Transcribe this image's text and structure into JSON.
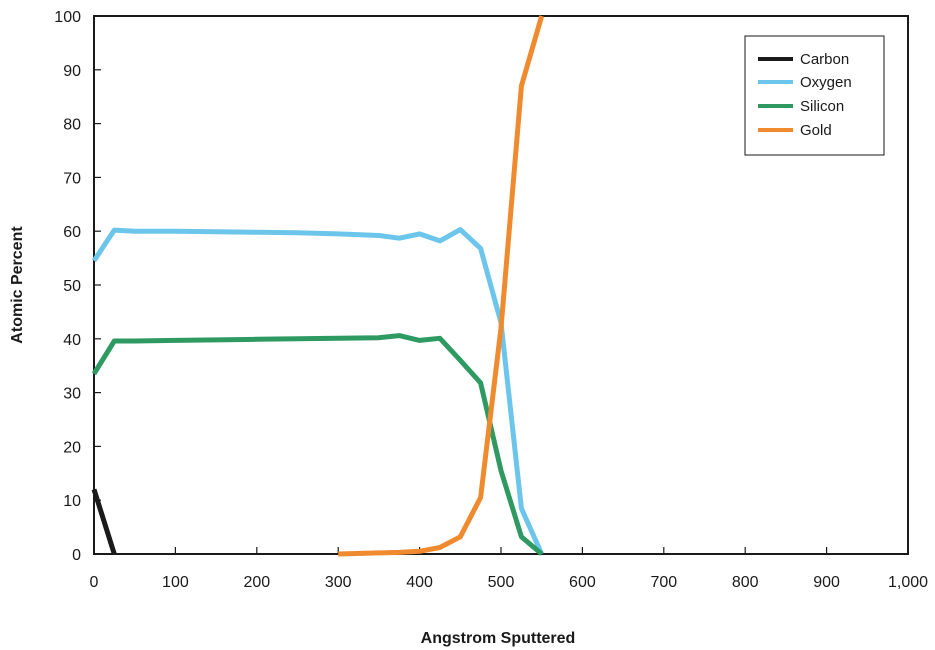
{
  "chart_data": {
    "type": "line",
    "xlabel": "Angstrom Sputtered",
    "ylabel": "Atomic Percent",
    "xlim": [
      0,
      1000
    ],
    "ylim": [
      0,
      100
    ],
    "x_ticks": [
      0,
      100,
      200,
      300,
      400,
      500,
      600,
      700,
      800,
      900,
      1000
    ],
    "x_tick_labels": [
      "0",
      "100",
      "200",
      "300",
      "400",
      "500",
      "600",
      "700",
      "800",
      "900",
      "1,000"
    ],
    "y_ticks": [
      0,
      10,
      20,
      30,
      40,
      50,
      60,
      70,
      80,
      90,
      100
    ],
    "y_tick_labels": [
      "0",
      "10",
      "20",
      "30",
      "40",
      "50",
      "60",
      "70",
      "80",
      "90",
      "100"
    ],
    "grid": false,
    "legend_position": "top-right",
    "series": [
      {
        "name": "Carbon",
        "color": "#1a1a1a",
        "x": [
          0,
          25
        ],
        "y": [
          12,
          0
        ]
      },
      {
        "name": "Oxygen",
        "color": "#6cc5ea",
        "x": [
          0,
          25,
          50,
          100,
          150,
          200,
          250,
          300,
          350,
          375,
          400,
          425,
          450,
          475,
          500,
          525,
          550
        ],
        "y": [
          54.5,
          60.2,
          60,
          60,
          59.9,
          59.8,
          59.7,
          59.5,
          59.2,
          58.7,
          59.5,
          58.2,
          60.3,
          56.8,
          43,
          8.5,
          0
        ]
      },
      {
        "name": "Silicon",
        "color": "#2e9a62",
        "x": [
          0,
          25,
          50,
          100,
          150,
          200,
          250,
          300,
          350,
          375,
          400,
          425,
          450,
          475,
          500,
          525,
          550
        ],
        "y": [
          33.5,
          39.6,
          39.6,
          39.7,
          39.8,
          39.9,
          40,
          40.1,
          40.2,
          40.6,
          39.7,
          40.1,
          36,
          31.8,
          15.5,
          3.2,
          0
        ]
      },
      {
        "name": "Gold",
        "color": "#f08a2e",
        "x": [
          300,
          350,
          375,
          400,
          425,
          450,
          475,
          500,
          525,
          550
        ],
        "y": [
          0,
          0.2,
          0.3,
          0.5,
          1.2,
          3.2,
          10.5,
          42,
          87,
          100
        ]
      }
    ]
  }
}
